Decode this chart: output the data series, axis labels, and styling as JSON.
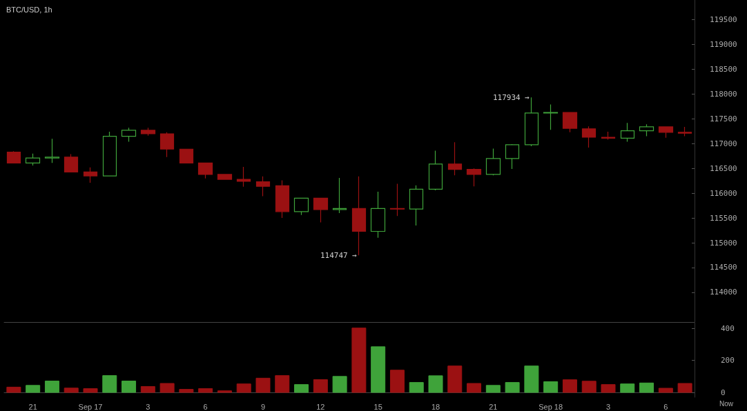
{
  "chart_data": [
    {
      "type": "candlestick",
      "title": "BTC/USD, 1h",
      "categories": [
        null,
        null,
        null,
        null,
        null,
        null,
        null,
        null,
        null,
        null,
        null,
        null,
        null,
        null,
        null,
        null,
        null,
        null,
        null,
        null,
        null,
        null,
        null,
        null,
        null,
        null,
        null,
        null,
        null,
        null,
        null,
        null,
        null,
        null,
        null,
        null
      ],
      "ohlc": [
        [
          116830,
          116850,
          116600,
          116610
        ],
        [
          116610,
          116800,
          116560,
          116710
        ],
        [
          116710,
          117100,
          116610,
          116730
        ],
        [
          116730,
          116790,
          116430,
          116430
        ],
        [
          116430,
          116520,
          116210,
          116350
        ],
        [
          116350,
          117240,
          116350,
          117150
        ],
        [
          117150,
          117320,
          117040,
          117270
        ],
        [
          117270,
          117320,
          117160,
          117200
        ],
        [
          117200,
          117230,
          116730,
          116890
        ],
        [
          116890,
          116890,
          116610,
          116610
        ],
        [
          116610,
          116620,
          116300,
          116380
        ],
        [
          116380,
          116390,
          116280,
          116280
        ],
        [
          116280,
          116530,
          116130,
          116240
        ],
        [
          116230,
          116340,
          115940,
          116140
        ],
        [
          116150,
          116260,
          115500,
          115630
        ],
        [
          115630,
          115900,
          115560,
          115900
        ],
        [
          115900,
          115900,
          115410,
          115670
        ],
        [
          115670,
          116310,
          115600,
          115690
        ],
        [
          115690,
          116340,
          114747,
          115230
        ],
        [
          115230,
          116030,
          115100,
          115690
        ],
        [
          115690,
          116190,
          115540,
          115680
        ],
        [
          115680,
          116160,
          115350,
          116080
        ],
        [
          116080,
          116860,
          116060,
          116590
        ],
        [
          116590,
          117030,
          116360,
          116480
        ],
        [
          116480,
          116500,
          116140,
          116380
        ],
        [
          116380,
          116900,
          116360,
          116700
        ],
        [
          116700,
          116990,
          116490,
          116980
        ],
        [
          116980,
          117934,
          116950,
          117620
        ],
        [
          117620,
          117790,
          117280,
          117630
        ],
        [
          117630,
          117630,
          117230,
          117310
        ],
        [
          117300,
          117350,
          116920,
          117130
        ],
        [
          117130,
          117240,
          117080,
          117110
        ],
        [
          117110,
          117420,
          117040,
          117260
        ],
        [
          117260,
          117390,
          117150,
          117340
        ],
        [
          117340,
          117340,
          117120,
          117230
        ],
        [
          117230,
          117340,
          117150,
          117210
        ]
      ],
      "colors": [
        "#9b1112",
        "#3fa33a",
        "#3fa33a",
        "#9b1112",
        "#9b1112",
        "#3fa33a",
        "#3fa33a",
        "#9b1112",
        "#9b1112",
        "#9b1112",
        "#9b1112",
        "#9b1112",
        "#9b1112",
        "#9b1112",
        "#9b1112",
        "#3fa33a",
        "#9b1112",
        "#3fa33a",
        "#9b1112",
        "#3fa33a",
        "#9b1112",
        "#3fa33a",
        "#3fa33a",
        "#9b1112",
        "#9b1112",
        "#3fa33a",
        "#3fa33a",
        "#3fa33a",
        "#3fa33a",
        "#9b1112",
        "#9b1112",
        "#9b1112",
        "#3fa33a",
        "#3fa33a",
        "#9b1112",
        "#9b1112"
      ],
      "ylim": [
        113400,
        119900
      ],
      "yticks": [
        114000,
        114500,
        115000,
        115500,
        116000,
        116500,
        117000,
        117500,
        118000,
        118500,
        119000,
        119500
      ],
      "tick_labels": "y",
      "grid": false,
      "annotations": [
        "117934 →",
        "114747 →"
      ]
    },
    {
      "type": "bar",
      "categories": [
        null,
        "21",
        null,
        null,
        "Sep 17",
        null,
        null,
        "3",
        null,
        null,
        "6",
        null,
        null,
        "9",
        null,
        null,
        "12",
        null,
        null,
        "15",
        null,
        null,
        "18",
        null,
        null,
        "21",
        null,
        null,
        "Sep 18",
        null,
        null,
        "3",
        null,
        null,
        "6",
        null
      ],
      "values": [
        33,
        44,
        71,
        27,
        24,
        105,
        71,
        37,
        56,
        19,
        24,
        10,
        53,
        89,
        105,
        49,
        80,
        100,
        402,
        285,
        139,
        62,
        104,
        165,
        56,
        44,
        62,
        165,
        67,
        79,
        70,
        49,
        53,
        59,
        26,
        56
      ],
      "colors": [
        "#9b1112",
        "#3fa33a",
        "#3fa33a",
        "#9b1112",
        "#9b1112",
        "#3fa33a",
        "#3fa33a",
        "#9b1112",
        "#9b1112",
        "#9b1112",
        "#9b1112",
        "#9b1112",
        "#9b1112",
        "#9b1112",
        "#9b1112",
        "#3fa33a",
        "#9b1112",
        "#3fa33a",
        "#9b1112",
        "#3fa33a",
        "#9b1112",
        "#3fa33a",
        "#3fa33a",
        "#9b1112",
        "#9b1112",
        "#3fa33a",
        "#3fa33a",
        "#3fa33a",
        "#3fa33a",
        "#9b1112",
        "#9b1112",
        "#9b1112",
        "#3fa33a",
        "#3fa33a",
        "#9b1112",
        "#9b1112"
      ],
      "ylim": [
        -30,
        435
      ],
      "yticks": [
        0,
        200,
        400
      ],
      "grid": false,
      "annotations": [
        "Now"
      ]
    }
  ]
}
